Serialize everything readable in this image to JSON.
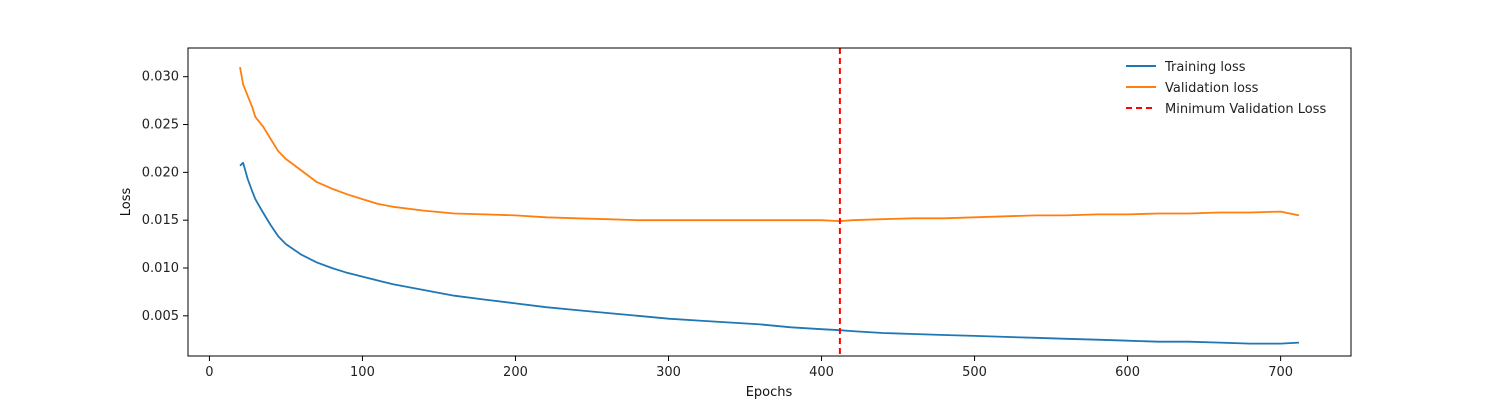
{
  "chart_data": {
    "type": "line",
    "title": "",
    "xlabel": "Epochs",
    "ylabel": "Loss",
    "xlim": [
      -14,
      746
    ],
    "ylim": [
      0.0008,
      0.033
    ],
    "xticks": [
      0,
      100,
      200,
      300,
      400,
      500,
      600,
      700
    ],
    "yticks": [
      0.005,
      0.01,
      0.015,
      0.02,
      0.025,
      0.03
    ],
    "xtick_labels": [
      "0",
      "100",
      "200",
      "300",
      "400",
      "500",
      "600",
      "700"
    ],
    "ytick_labels": [
      "0.005",
      "0.010",
      "0.015",
      "0.020",
      "0.025",
      "0.030"
    ],
    "grid": false,
    "legend_position": "top-right",
    "series": [
      {
        "name": "Training loss",
        "color": "#1f77b4",
        "x": [
          20,
          22,
          25,
          28,
          30,
          35,
          40,
          45,
          50,
          60,
          70,
          80,
          90,
          100,
          120,
          140,
          160,
          180,
          200,
          220,
          240,
          260,
          280,
          300,
          320,
          340,
          360,
          380,
          400,
          412,
          420,
          440,
          460,
          480,
          500,
          520,
          540,
          560,
          580,
          600,
          620,
          640,
          660,
          680,
          700,
          712
        ],
        "y": [
          0.0207,
          0.021,
          0.0193,
          0.018,
          0.0172,
          0.0158,
          0.0145,
          0.0133,
          0.0125,
          0.0114,
          0.0106,
          0.01,
          0.0095,
          0.0091,
          0.0083,
          0.0077,
          0.0071,
          0.0067,
          0.0063,
          0.0059,
          0.0056,
          0.0053,
          0.005,
          0.0047,
          0.0045,
          0.0043,
          0.0041,
          0.0038,
          0.0036,
          0.0035,
          0.0034,
          0.0032,
          0.0031,
          0.003,
          0.0029,
          0.0028,
          0.0027,
          0.0026,
          0.0025,
          0.0024,
          0.0023,
          0.0023,
          0.0022,
          0.0021,
          0.0021,
          0.0022
        ]
      },
      {
        "name": "Validation loss",
        "color": "#ff7f0e",
        "x": [
          20,
          22,
          25,
          28,
          30,
          35,
          40,
          45,
          50,
          60,
          70,
          80,
          90,
          100,
          110,
          120,
          140,
          160,
          180,
          200,
          220,
          240,
          260,
          280,
          300,
          320,
          340,
          360,
          380,
          400,
          412,
          420,
          440,
          460,
          480,
          500,
          520,
          540,
          560,
          580,
          600,
          620,
          640,
          660,
          680,
          700,
          712
        ],
        "y": [
          0.031,
          0.0292,
          0.028,
          0.0268,
          0.0258,
          0.0248,
          0.0235,
          0.0222,
          0.0214,
          0.0202,
          0.019,
          0.0183,
          0.0177,
          0.0172,
          0.0167,
          0.0164,
          0.016,
          0.0157,
          0.0156,
          0.0155,
          0.0153,
          0.0152,
          0.0151,
          0.015,
          0.015,
          0.015,
          0.015,
          0.015,
          0.015,
          0.015,
          0.0149,
          0.015,
          0.0151,
          0.0152,
          0.0152,
          0.0153,
          0.0154,
          0.0155,
          0.0155,
          0.0156,
          0.0156,
          0.0157,
          0.0157,
          0.0158,
          0.0158,
          0.0159,
          0.0155
        ]
      }
    ],
    "vline": {
      "name": "Minimum Validation Loss",
      "x": 412,
      "color": "#ff0000",
      "style": "dashed"
    }
  }
}
